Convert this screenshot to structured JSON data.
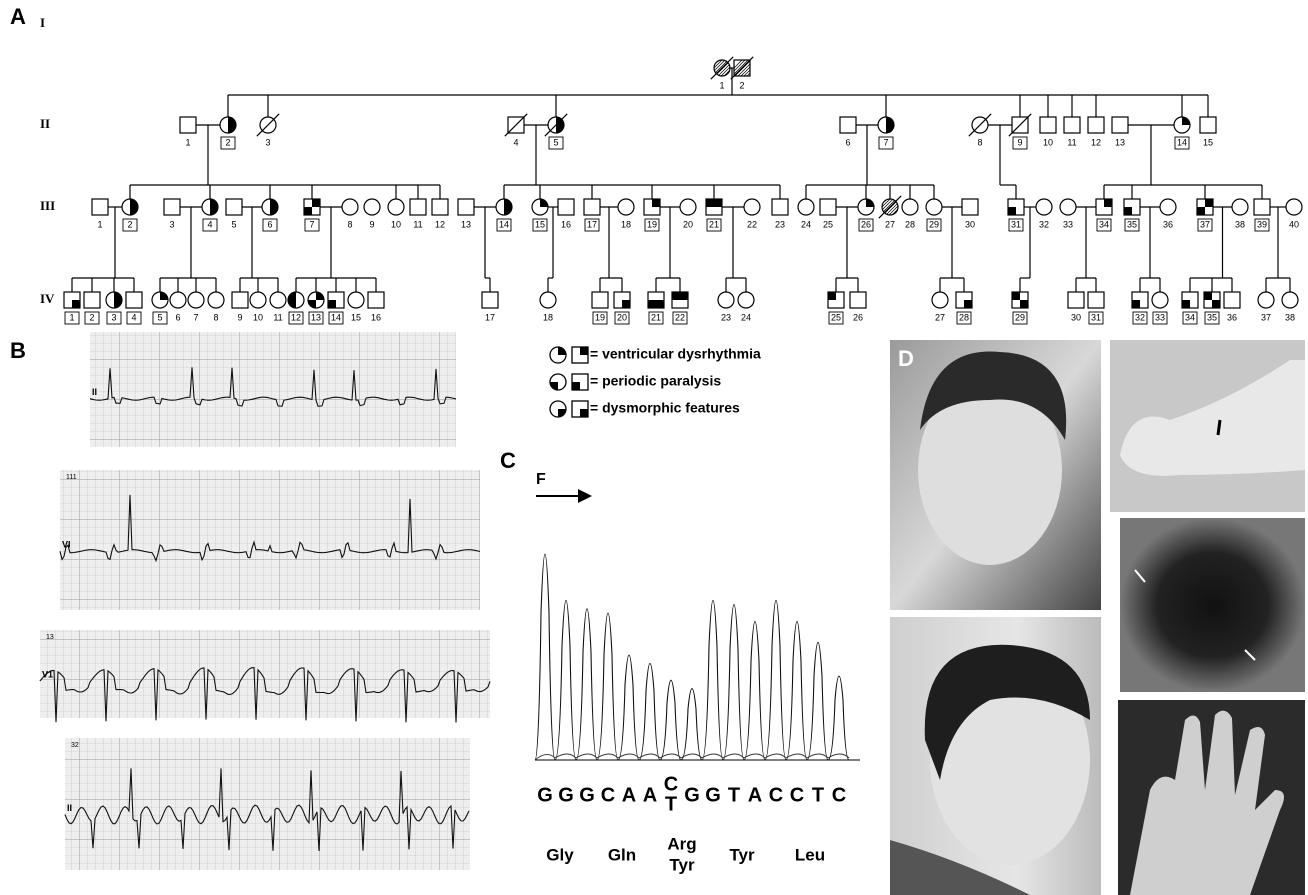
{
  "panels": {
    "a": "A",
    "b": "B",
    "c": "C",
    "d": "D"
  },
  "pedigree": {
    "generations": [
      {
        "label": "I",
        "individuals": [
          "1",
          "2"
        ]
      },
      {
        "label": "II",
        "individuals": [
          "1",
          "2",
          "3",
          "4",
          "5",
          "6",
          "7",
          "8",
          "9",
          "10",
          "11",
          "12",
          "13",
          "14",
          "15"
        ]
      },
      {
        "label": "III",
        "individuals": [
          "1",
          "2",
          "3",
          "4",
          "5",
          "6",
          "7",
          "8",
          "9",
          "10",
          "11",
          "12",
          "13",
          "14",
          "15",
          "16",
          "17",
          "18",
          "19",
          "20",
          "21",
          "22",
          "23",
          "24",
          "25",
          "26",
          "27",
          "28",
          "29",
          "30",
          "31",
          "32",
          "33",
          "34",
          "35",
          "36",
          "37",
          "38",
          "39",
          "40"
        ]
      },
      {
        "label": "IV",
        "individuals": [
          "1",
          "2",
          "3",
          "4",
          "5",
          "6",
          "7",
          "8",
          "9",
          "10",
          "11",
          "12",
          "13",
          "14",
          "15",
          "16",
          "17",
          "18",
          "19",
          "20",
          "21",
          "22",
          "23",
          "24",
          "25",
          "26",
          "27",
          "28",
          "29",
          "30",
          "31",
          "32",
          "33",
          "34",
          "35",
          "36",
          "37",
          "38"
        ]
      }
    ]
  },
  "legend": [
    "= ventricular dysrhythmia",
    "= periodic paralysis",
    "= dysmorphic features"
  ],
  "ecg": [
    {
      "lead": "II"
    },
    {
      "number": "111",
      "lead": "VI"
    },
    {
      "number": "13",
      "lead": "V1"
    },
    {
      "number": "32",
      "lead": "II"
    }
  ],
  "sequence": {
    "direction": "F",
    "bases": [
      "G",
      "G",
      "G",
      "C",
      "A",
      "A",
      {
        "top": "C",
        "bottom": "T"
      },
      "G",
      "G",
      "T",
      "A",
      "C",
      "C",
      "T",
      "C"
    ],
    "amino_acids": [
      "Gly",
      "Gln",
      {
        "top": "Arg",
        "bottom": "Tyr"
      },
      "Tyr",
      "Leu"
    ]
  }
}
